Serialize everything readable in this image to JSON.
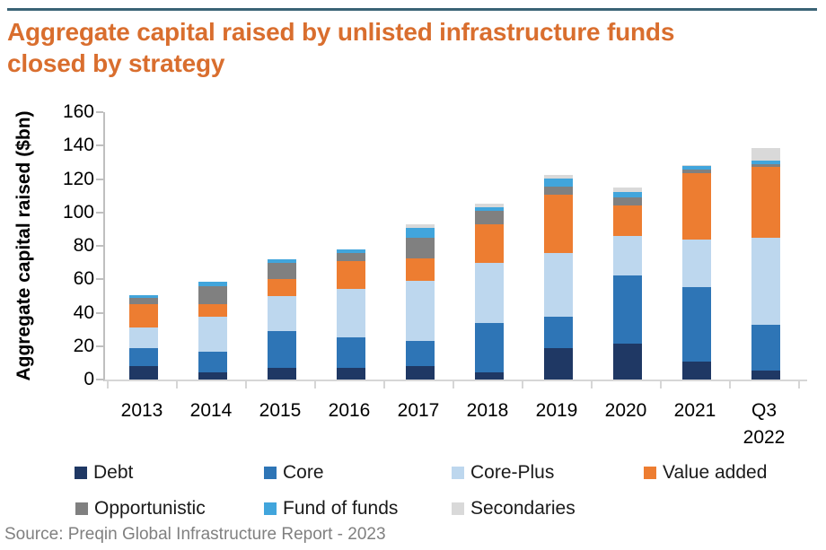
{
  "header": {
    "title_line1": "Aggregate capital raised by unlisted infrastructure funds",
    "title_line2": "closed by strategy"
  },
  "footer": {
    "source": "Source: Preqin Global Infrastructure Report - 2023"
  },
  "colors": {
    "title_text": "#d96e2e",
    "top_rule": "#3a6375",
    "axis_line": "#bfbfbf",
    "source_text": "#808080"
  },
  "chart_data": {
    "type": "bar",
    "stacked": true,
    "title": "Aggregate capital raised by unlisted infrastructure funds closed by strategy",
    "xlabel": "",
    "ylabel": "Aggregate capital raised ($bn)",
    "ylim": [
      0,
      160
    ],
    "yticks": [
      0,
      20,
      40,
      60,
      80,
      100,
      120,
      140,
      160
    ],
    "grid": false,
    "legend_position": "bottom",
    "categories": [
      "2013",
      "2014",
      "2015",
      "2016",
      "2017",
      "2018",
      "2019",
      "2020",
      "2021",
      "Q3 2022"
    ],
    "series": [
      {
        "name": "Debt",
        "color": "#1f3864",
        "values": [
          8,
          4.5,
          7,
          7,
          8,
          4.5,
          19,
          21.5,
          11,
          5.5
        ]
      },
      {
        "name": "Core",
        "color": "#2e75b6",
        "values": [
          11,
          12,
          22,
          18,
          15,
          29.5,
          18.5,
          41,
          44.5,
          27.5
        ]
      },
      {
        "name": "Core-Plus",
        "color": "#bdd7ee",
        "values": [
          12,
          21,
          21,
          29,
          36,
          36,
          38,
          23.5,
          28.5,
          52
        ]
      },
      {
        "name": "Value added",
        "color": "#ed7d31",
        "values": [
          14,
          7.5,
          10,
          17,
          13.5,
          23,
          35,
          18,
          39.5,
          42.5
        ]
      },
      {
        "name": "Opportunistic",
        "color": "#808080",
        "values": [
          4,
          11,
          10,
          4.5,
          12.5,
          8,
          5,
          5,
          2,
          1.5
        ]
      },
      {
        "name": "Fund of funds",
        "color": "#41a5dc",
        "values": [
          1.5,
          2.5,
          2,
          2.5,
          5.5,
          2,
          5,
          3,
          2.5,
          2
        ]
      },
      {
        "name": "Secondaries",
        "color": "#d9d9d9",
        "values": [
          0,
          0,
          0,
          0,
          2.5,
          2,
          2,
          3,
          0.5,
          7.5
        ]
      }
    ],
    "totals": [
      50.5,
      58.5,
      72,
      78,
      93,
      105,
      122.5,
      115,
      128.5,
      138.5
    ]
  }
}
